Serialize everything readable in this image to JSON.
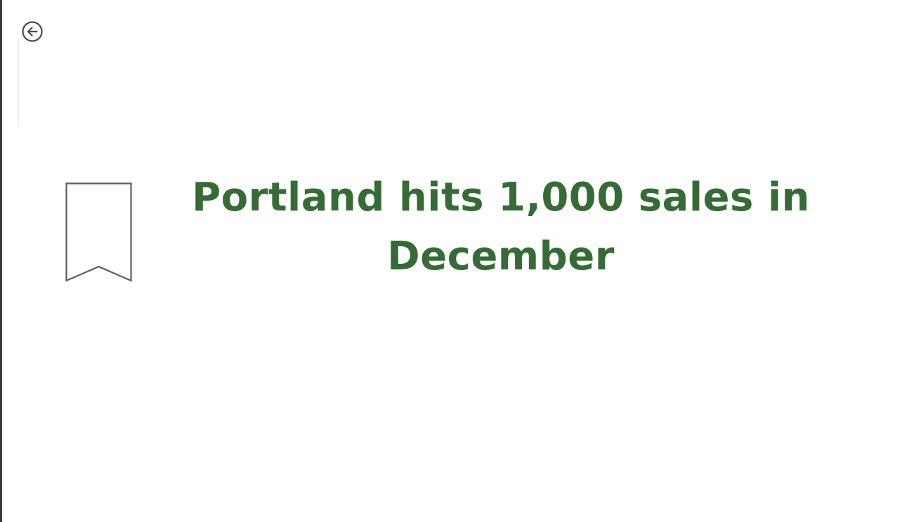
{
  "page": {
    "headline": "Portland hits 1,000 sales in December",
    "accent_color": "#356b35"
  },
  "icons": {
    "back": "back-arrow-circle-icon",
    "bookmark": "bookmark-icon"
  }
}
